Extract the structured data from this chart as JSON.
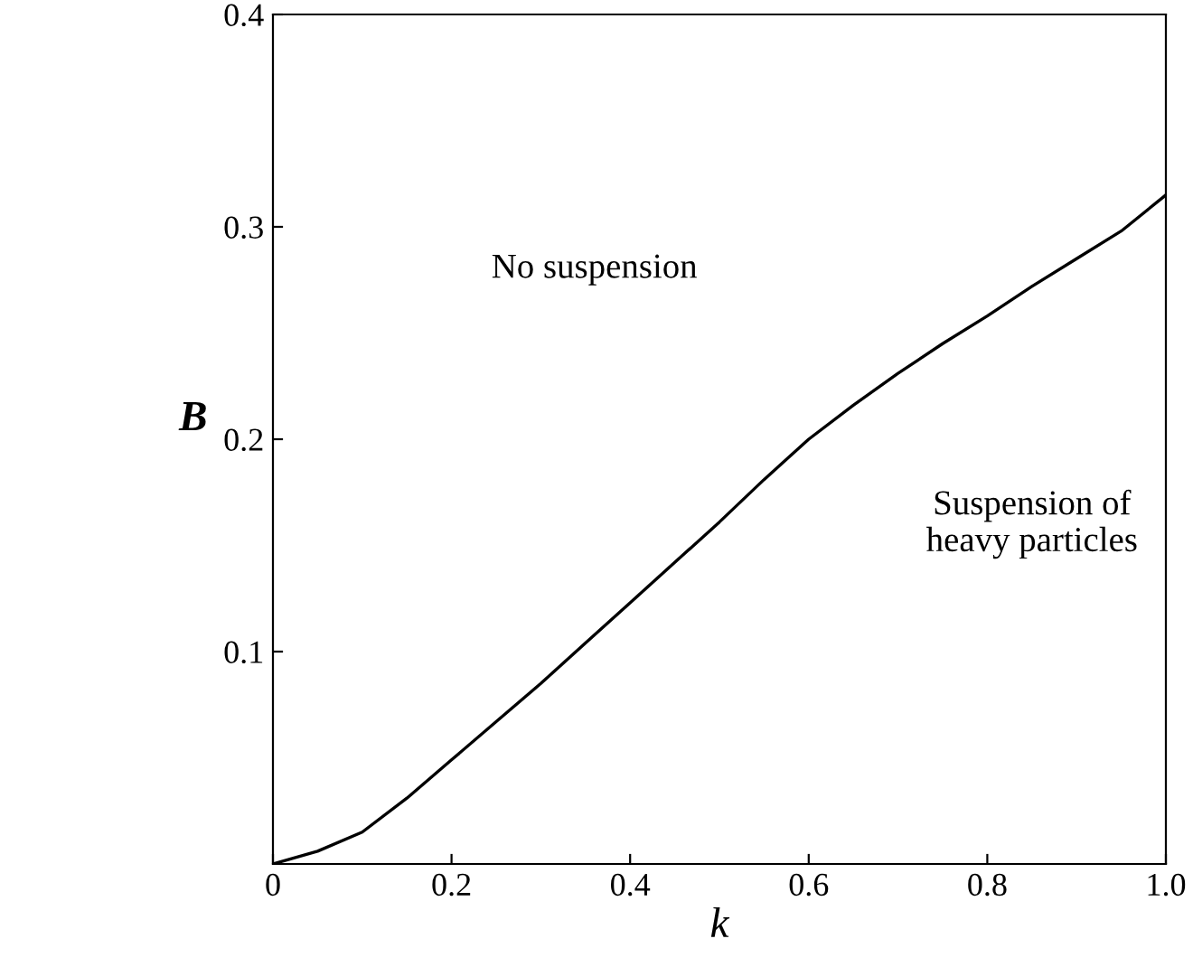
{
  "chart_data": {
    "type": "line",
    "xlabel": "k",
    "ylabel": "B",
    "x": [
      0,
      0.05,
      0.1,
      0.15,
      0.2,
      0.25,
      0.3,
      0.35,
      0.4,
      0.45,
      0.5,
      0.55,
      0.6,
      0.65,
      0.7,
      0.75,
      0.8,
      0.85,
      0.9,
      0.95,
      1.0
    ],
    "series": [
      {
        "color": "#000000",
        "values": [
          0,
          0.006,
          0.015,
          0.031,
          0.049,
          0.067,
          0.085,
          0.104,
          0.123,
          0.142,
          0.161,
          0.181,
          0.2,
          0.216,
          0.231,
          0.245,
          0.258,
          0.272,
          0.285,
          0.298,
          0.315
        ]
      }
    ],
    "xlim": [
      0,
      1.0
    ],
    "ylim": [
      0,
      0.4
    ],
    "xticks": [
      0,
      0.2,
      0.4,
      0.6,
      0.8,
      {
        "value": 1.0,
        "label": "1.0"
      }
    ],
    "yticks": [
      0.1,
      0.2,
      0.3,
      0.4
    ],
    "annotations": [
      "No suspension",
      "Suspension of\nheavy particles"
    ],
    "grid": false,
    "marker": "none",
    "line_style": "solid"
  }
}
